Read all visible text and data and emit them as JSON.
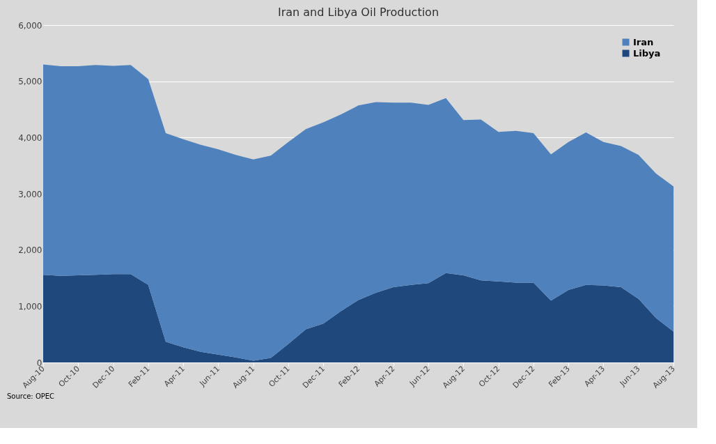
{
  "chart_data": {
    "type": "area",
    "title": "Iran and Libya Oil Production",
    "stacked": true,
    "categories": [
      "Aug-10",
      null,
      "Oct-10",
      null,
      "Dec-10",
      null,
      "Feb-11",
      null,
      "Apr-11",
      null,
      "Jun-11",
      null,
      "Aug-11",
      null,
      "Oct-11",
      null,
      "Dec-11",
      null,
      "Feb-12",
      null,
      "Apr-12",
      null,
      "Jun-12",
      null,
      "Aug-12",
      null,
      "Oct-12",
      null,
      "Dec-12",
      null,
      "Feb-13",
      null,
      "Apr-13",
      null,
      "Jun-13",
      null,
      "Aug-13"
    ],
    "series": [
      {
        "name": "Libya",
        "color": "#1f497d",
        "values": [
          1560,
          1540,
          1550,
          1560,
          1570,
          1570,
          1380,
          370,
          270,
          190,
          140,
          90,
          30,
          80,
          330,
          590,
          690,
          910,
          1110,
          1240,
          1340,
          1380,
          1410,
          1590,
          1550,
          1460,
          1440,
          1420,
          1420,
          1100,
          1290,
          1380,
          1370,
          1340,
          1130,
          790,
          550
        ]
      },
      {
        "name": "Iran",
        "color": "#4f81bd",
        "values": [
          3740,
          3730,
          3720,
          3730,
          3705,
          3720,
          3660,
          3710,
          3700,
          3680,
          3650,
          3600,
          3580,
          3600,
          3590,
          3560,
          3580,
          3500,
          3460,
          3390,
          3280,
          3240,
          3170,
          3110,
          2760,
          2860,
          2660,
          2700,
          2660,
          2600,
          2630,
          2710,
          2550,
          2510,
          2560,
          2570,
          2580
        ]
      }
    ],
    "ylim": [
      0,
      6000
    ],
    "yticks": [
      {
        "value": 0,
        "label": "0"
      },
      {
        "value": 1000,
        "label": "1,000"
      },
      {
        "value": 2000,
        "label": "2,000"
      },
      {
        "value": 3000,
        "label": "3,000"
      },
      {
        "value": 4000,
        "label": "4,000"
      },
      {
        "value": 5000,
        "label": "5,000"
      },
      {
        "value": 6000,
        "label": "6,000"
      }
    ],
    "grid": "y",
    "legend": "top right",
    "annotations": [
      "Source: OPEC"
    ]
  }
}
